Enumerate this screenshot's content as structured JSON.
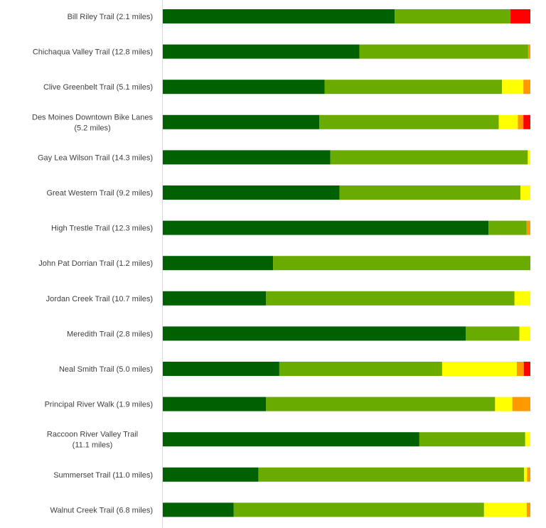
{
  "chart_data": {
    "type": "bar",
    "orientation": "horizontal",
    "stacked": true,
    "percent": true,
    "title": "",
    "xlabel": "",
    "ylabel": "",
    "xlim": [
      0,
      100
    ],
    "legend": "none",
    "grid": false,
    "categories": [
      "Bill Riley Trail (2.1 miles)",
      "Chichaqua Valley Trail (12.8 miles)",
      "Clive Greenbelt Trail (5.1 miles)",
      "Des Moines Downtown Bike Lanes (5.2 miles)",
      "Gay Lea Wilson Trail (14.3 miles)",
      "Great Western Trail (9.2 miles)",
      "High Trestle Trail (12.3 miles)",
      "John Pat Dorrian Trail (1.2 miles)",
      "Jordan Creek Trail (10.7 miles)",
      "Meredith Trail (2.8 miles)",
      "Neal Smith Trail (5.0 miles)",
      "Principal River Walk (1.9 miles)",
      "Raccoon River Valley Trail (11.1 miles)",
      "Summerset Trail (11.0 miles)",
      "Walnut Creek Trail (6.8 miles)"
    ],
    "label_lines": [
      [
        "Bill Riley Trail (2.1 miles)"
      ],
      [
        "Chichaqua Valley Trail (12.8 miles)"
      ],
      [
        "Clive Greenbelt Trail (5.1 miles)"
      ],
      [
        "Des Moines Downtown Bike Lanes",
        "(5.2 miles)"
      ],
      [
        "Gay Lea Wilson Trail (14.3 miles)"
      ],
      [
        "Great Western Trail (9.2 miles)"
      ],
      [
        "High Trestle Trail (12.3 miles)"
      ],
      [
        "John Pat Dorrian Trail (1.2 miles)"
      ],
      [
        "Jordan Creek Trail (10.7 miles)"
      ],
      [
        "Meredith Trail (2.8 miles)"
      ],
      [
        "Neal Smith Trail (5.0 miles)"
      ],
      [
        "Principal River Walk (1.9 miles)"
      ],
      [
        "Raccoon River Valley Trail",
        "(11.1 miles)"
      ],
      [
        "Summerset Trail (11.0 miles)"
      ],
      [
        "Walnut Creek Trail (6.8 miles)"
      ]
    ],
    "series": [
      {
        "color": "#006100",
        "values": [
          63.1,
          53.5,
          44.0,
          42.6,
          45.6,
          48.1,
          88.6,
          30.0,
          28.1,
          82.4,
          31.7,
          28.1,
          69.8,
          26.0,
          19.3
        ]
      },
      {
        "color": "#6aab00",
        "values": [
          31.5,
          45.9,
          48.3,
          48.8,
          53.7,
          49.2,
          10.4,
          70.0,
          67.6,
          14.6,
          44.3,
          62.3,
          28.8,
          72.3,
          68.1
        ]
      },
      {
        "color": "#ffff00",
        "values": [
          0,
          0,
          5.8,
          5.2,
          0.7,
          2.7,
          0,
          0,
          4.3,
          3.0,
          20.3,
          4.7,
          1.4,
          0.8,
          11.6
        ]
      },
      {
        "color": "#ff9900",
        "values": [
          0,
          0.6,
          1.9,
          1.5,
          0,
          0,
          1.0,
          0,
          0,
          0,
          1.9,
          4.9,
          0,
          0.9,
          1.0
        ]
      },
      {
        "color": "#ff0000",
        "values": [
          5.4,
          0,
          0,
          1.9,
          0,
          0,
          0,
          0,
          0,
          0,
          1.8,
          0,
          0,
          0,
          0
        ]
      }
    ]
  }
}
